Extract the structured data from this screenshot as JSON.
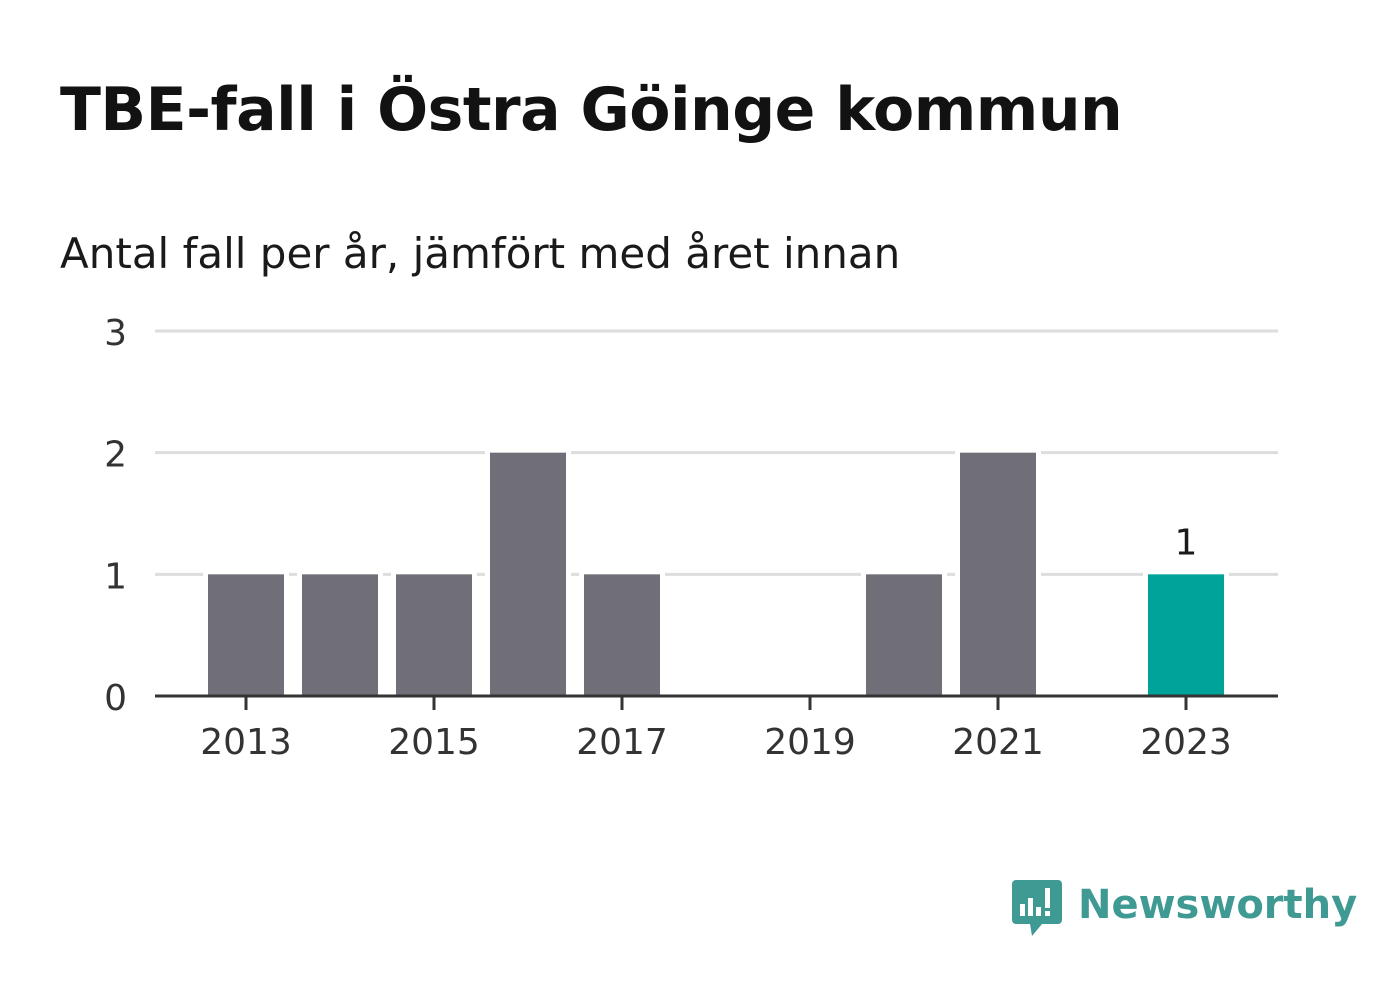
{
  "header": {
    "title": "TBE-fall i Östra Göinge kommun",
    "subtitle": "Antal fall per år, jämfört med året innan"
  },
  "chart_data": {
    "type": "bar",
    "title": "TBE-fall i Östra Göinge kommun",
    "subtitle": "Antal fall per år, jämfört med året innan",
    "categories": [
      "2013",
      "2014",
      "2015",
      "2016",
      "2017",
      "2018",
      "2019",
      "2020",
      "2021",
      "2022",
      "2023"
    ],
    "values": [
      1,
      1,
      1,
      2,
      1,
      0,
      0,
      1,
      2,
      0,
      1
    ],
    "x_tick_labels": [
      "2013",
      "2015",
      "2017",
      "2019",
      "2021",
      "2023"
    ],
    "y_ticks": [
      0,
      1,
      2,
      3
    ],
    "ylim": [
      0,
      3
    ],
    "grid": true,
    "highlight": {
      "category": "2023",
      "label": "1"
    },
    "colors": {
      "bar": "#706f77",
      "highlight": "#00a399",
      "grid": "#dddddd",
      "axis": "#333333"
    }
  },
  "brand": {
    "name": "Newsworthy",
    "icon": "newsworthy-logo-icon",
    "color": "#3f9a94"
  }
}
